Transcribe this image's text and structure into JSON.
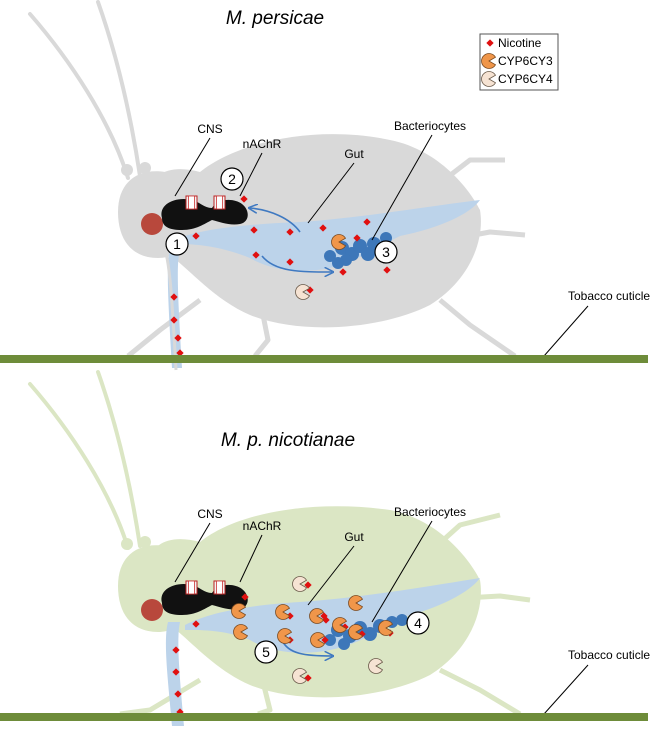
{
  "panels": [
    {
      "title": "M. persicae",
      "labels": {
        "cns": "CNS",
        "nachr": "nAChR",
        "gut": "Gut",
        "bacteriocytes": "Bacteriocytes",
        "cuticle": "Tobacco cuticle"
      },
      "step_numbers": [
        "1",
        "2",
        "3"
      ]
    },
    {
      "title": "M. p. nicotianae",
      "labels": {
        "cns": "CNS",
        "nachr": "nAChR",
        "gut": "Gut",
        "bacteriocytes": "Bacteriocytes",
        "cuticle": "Tobacco cuticle"
      },
      "step_numbers": [
        "4",
        "5"
      ]
    }
  ],
  "legend": {
    "items": [
      {
        "label": "Nicotine",
        "icon": "nicotine-dot-icon",
        "color": "#e01010"
      },
      {
        "label": "CYP6CY3",
        "icon": "cyp6cy3-pacman-icon",
        "color": "#f0964a"
      },
      {
        "label": "CYP6CY4",
        "icon": "cyp6cy4-pacman-icon",
        "color": "#f6e3d3"
      }
    ]
  },
  "colors": {
    "aphid_top": "#d9d9d9",
    "aphid_bottom": "#dbe6c4",
    "gut": "#bcd3ea",
    "bacteriocyte": "#3d77b9",
    "cuticle": "#6e8c3a",
    "cns": "#111111",
    "eye": "#b8483c",
    "arrow": "#3f79c1"
  }
}
